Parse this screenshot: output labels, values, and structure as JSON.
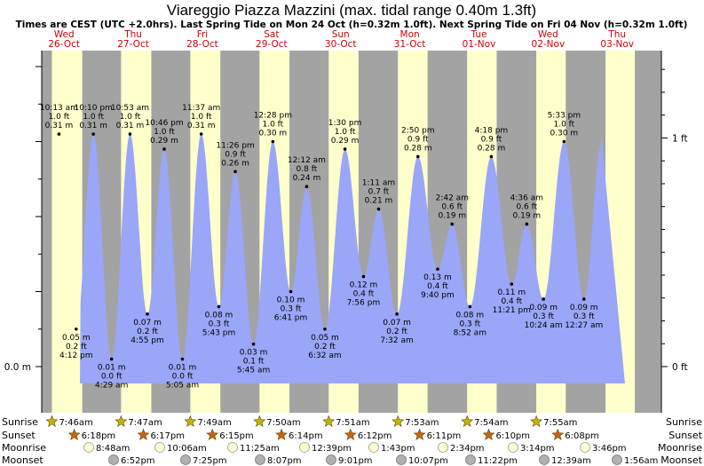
{
  "title": "Viareggio Piazza Mazzini (max. tidal range 0.40m 1.3ft)",
  "subtitle": "Times are CEST (UTC +2.0hrs). Last Spring Tide on Mon 24 Oct (h=0.32m 1.0ft). Next Spring Tide on Fri 04 Nov (h=0.32m 1.0ft)",
  "colors": {
    "day": "#ffffcc",
    "night": "#a3a3a3",
    "water": "#9aa6f8",
    "day_label": "#d00000",
    "sun_star": "#c8b400",
    "sunset_star": "#c86414",
    "moon": "#ffffd0",
    "moon_set": "#b0b0b0"
  },
  "days": [
    {
      "dow": "Wed",
      "date": "26-Oct"
    },
    {
      "dow": "Thu",
      "date": "27-Oct"
    },
    {
      "dow": "Fri",
      "date": "28-Oct"
    },
    {
      "dow": "Sat",
      "date": "29-Oct"
    },
    {
      "dow": "Sun",
      "date": "30-Oct"
    },
    {
      "dow": "Mon",
      "date": "31-Oct"
    },
    {
      "dow": "Tue",
      "date": "01-Nov"
    },
    {
      "dow": "Wed",
      "date": "02-Nov"
    },
    {
      "dow": "Thu",
      "date": "03-Nov"
    }
  ],
  "left_axis": {
    "label": "0.0 m"
  },
  "right_axis": [
    {
      "label": "0 ft"
    },
    {
      "label": "1 ft"
    }
  ],
  "chart_data": {
    "type": "area",
    "x_unit": "days from 00:00 26-Oct",
    "y_unit": "m",
    "ylim": [
      -0.025,
      0.44
    ],
    "tides": [
      {
        "day": 0,
        "t": 10.2167,
        "time": "10:13 am",
        "ft": "1.0 ft",
        "m": "0.31 m",
        "h": 0.31,
        "type": "high"
      },
      {
        "day": 0,
        "t": 16.2,
        "time": "4:12 pm",
        "ft": "0.2 ft",
        "m": "0.05 m",
        "h": 0.05,
        "type": "low"
      },
      {
        "day": 0,
        "t": 22.1667,
        "time": "10:10 pm",
        "ft": "1.0 ft",
        "m": "0.31 m",
        "h": 0.31,
        "type": "high"
      },
      {
        "day": 1,
        "t": 4.4833,
        "time": "4:29 am",
        "ft": "0.0 ft",
        "m": "0.01 m",
        "h": 0.01,
        "type": "low"
      },
      {
        "day": 1,
        "t": 10.8833,
        "time": "10:53 am",
        "ft": "1.0 ft",
        "m": "0.31 m",
        "h": 0.31,
        "type": "high"
      },
      {
        "day": 1,
        "t": 16.9167,
        "time": "4:55 pm",
        "ft": "0.2 ft",
        "m": "0.07 m",
        "h": 0.07,
        "type": "low"
      },
      {
        "day": 1,
        "t": 22.7667,
        "time": "10:46 pm",
        "ft": "1.0 ft",
        "m": "0.29 m",
        "h": 0.29,
        "type": "high"
      },
      {
        "day": 2,
        "t": 5.0833,
        "time": "5:05 am",
        "ft": "0.0 ft",
        "m": "0.01 m",
        "h": 0.01,
        "type": "low"
      },
      {
        "day": 2,
        "t": 11.6167,
        "time": "11:37 am",
        "ft": "1.0 ft",
        "m": "0.31 m",
        "h": 0.31,
        "type": "high"
      },
      {
        "day": 2,
        "t": 17.7167,
        "time": "5:43 pm",
        "ft": "0.3 ft",
        "m": "0.08 m",
        "h": 0.08,
        "type": "low"
      },
      {
        "day": 2,
        "t": 23.4333,
        "time": "11:26 pm",
        "ft": "0.9 ft",
        "m": "0.26 m",
        "h": 0.26,
        "type": "high"
      },
      {
        "day": 3,
        "t": 5.75,
        "time": "5:45 am",
        "ft": "0.1 ft",
        "m": "0.03 m",
        "h": 0.03,
        "type": "low"
      },
      {
        "day": 3,
        "t": 12.4667,
        "time": "12:28 pm",
        "ft": "1.0 ft",
        "m": "0.30 m",
        "h": 0.3,
        "type": "high"
      },
      {
        "day": 3,
        "t": 18.6833,
        "time": "6:41 pm",
        "ft": "0.3 ft",
        "m": "0.10 m",
        "h": 0.1,
        "type": "low"
      },
      {
        "day": 4,
        "t": 0.2,
        "time": "12:12 am",
        "ft": "0.8 ft",
        "m": "0.24 m",
        "h": 0.24,
        "type": "high"
      },
      {
        "day": 4,
        "t": 6.5333,
        "time": "6:32 am",
        "ft": "0.2 ft",
        "m": "0.05 m",
        "h": 0.05,
        "type": "low"
      },
      {
        "day": 4,
        "t": 13.5,
        "time": "1:30 pm",
        "ft": "1.0 ft",
        "m": "0.29 m",
        "h": 0.29,
        "type": "high"
      },
      {
        "day": 4,
        "t": 19.9333,
        "time": "7:56 pm",
        "ft": "0.4 ft",
        "m": "0.12 m",
        "h": 0.12,
        "type": "low"
      },
      {
        "day": 5,
        "t": 1.1833,
        "time": "1:11 am",
        "ft": "0.7 ft",
        "m": "0.21 m",
        "h": 0.21,
        "type": "high"
      },
      {
        "day": 5,
        "t": 7.5333,
        "time": "7:32 am",
        "ft": "0.2 ft",
        "m": "0.07 m",
        "h": 0.07,
        "type": "low"
      },
      {
        "day": 5,
        "t": 14.8333,
        "time": "2:50 pm",
        "ft": "0.9 ft",
        "m": "0.28 m",
        "h": 0.28,
        "type": "high"
      },
      {
        "day": 5,
        "t": 21.6667,
        "time": "9:40 pm",
        "ft": "0.4 ft",
        "m": "0.13 m",
        "h": 0.13,
        "type": "low"
      },
      {
        "day": 6,
        "t": 2.7,
        "time": "2:42 am",
        "ft": "0.6 ft",
        "m": "0.19 m",
        "h": 0.19,
        "type": "high"
      },
      {
        "day": 6,
        "t": 8.8667,
        "time": "8:52 am",
        "ft": "0.3 ft",
        "m": "0.08 m",
        "h": 0.08,
        "type": "low"
      },
      {
        "day": 6,
        "t": 16.3,
        "time": "4:18 pm",
        "ft": "0.9 ft",
        "m": "0.28 m",
        "h": 0.28,
        "type": "high"
      },
      {
        "day": 6,
        "t": 23.35,
        "time": "11:21 pm",
        "ft": "0.4 ft",
        "m": "0.11 m",
        "h": 0.11,
        "type": "low"
      },
      {
        "day": 7,
        "t": 4.6,
        "time": "4:36 am",
        "ft": "0.6 ft",
        "m": "0.19 m",
        "h": 0.19,
        "type": "high"
      },
      {
        "day": 7,
        "t": 10.4,
        "time": "10:24 am",
        "ft": "0.3 ft",
        "m": "0.09 m",
        "h": 0.09,
        "type": "low"
      },
      {
        "day": 7,
        "t": 17.55,
        "time": "5:33 pm",
        "ft": "1.0 ft",
        "m": "0.30 m",
        "h": 0.3,
        "type": "high"
      },
      {
        "day": 8,
        "t": 0.45,
        "time": "12:27 am",
        "ft": "0.3 ft",
        "m": "0.09 m",
        "h": 0.09,
        "type": "low"
      }
    ]
  },
  "astro": {
    "labels": {
      "sunrise": "Sunrise",
      "sunset": "Sunset",
      "moonrise": "Moonrise",
      "moonset": "Moonset"
    },
    "days": [
      {
        "sunrise": "7:46am",
        "sunset": "6:18pm",
        "moonrise": "8:48am",
        "moonset": "6:52pm"
      },
      {
        "sunrise": "7:47am",
        "sunset": "6:17pm",
        "moonrise": "10:06am",
        "moonset": "7:25pm"
      },
      {
        "sunrise": "7:49am",
        "sunset": "6:15pm",
        "moonrise": "11:25am",
        "moonset": "8:07pm"
      },
      {
        "sunrise": "7:50am",
        "sunset": "6:14pm",
        "moonrise": "12:39pm",
        "moonset": "9:01pm"
      },
      {
        "sunrise": "7:51am",
        "sunset": "6:12pm",
        "moonrise": "1:43pm",
        "moonset": "10:07pm"
      },
      {
        "sunrise": "7:53am",
        "sunset": "6:11pm",
        "moonrise": "2:34pm",
        "moonset": "11:22pm"
      },
      {
        "sunrise": "7:54am",
        "sunset": "6:10pm",
        "moonrise": "3:14pm",
        "moonset": "12:39am"
      },
      {
        "sunrise": "7:55am",
        "sunset": "6:08pm",
        "moonrise": "3:46pm",
        "moonset": "1:56am"
      }
    ],
    "sun_events": [
      {
        "day": 0,
        "sunrise_h": 7.7667,
        "sunset_h": 18.3
      },
      {
        "day": 1,
        "sunrise_h": 7.7833,
        "sunset_h": 18.2833
      },
      {
        "day": 2,
        "sunrise_h": 7.8167,
        "sunset_h": 18.25
      },
      {
        "day": 3,
        "sunrise_h": 7.8333,
        "sunset_h": 18.2333
      },
      {
        "day": 4,
        "sunrise_h": 7.85,
        "sunset_h": 18.2
      },
      {
        "day": 5,
        "sunrise_h": 7.8833,
        "sunset_h": 18.1833
      },
      {
        "day": 6,
        "sunrise_h": 7.9,
        "sunset_h": 18.1667
      },
      {
        "day": 7,
        "sunrise_h": 7.9167,
        "sunset_h": 18.1333
      },
      {
        "day": 8,
        "sunrise_h": 7.93,
        "sunset_h": 18.12
      }
    ]
  }
}
